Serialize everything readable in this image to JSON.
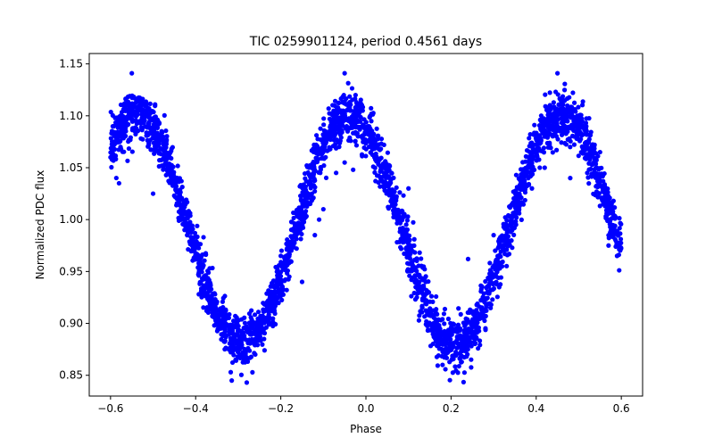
{
  "chart_data": {
    "type": "scatter",
    "title": "TIC 0259901124, period 0.4561 days",
    "xlabel": "Phase",
    "ylabel": "Normalized PDC flux",
    "xlim": [
      -0.65,
      0.65
    ],
    "ylim": [
      0.83,
      1.16
    ],
    "xticks": [
      -0.6,
      -0.4,
      -0.2,
      0.0,
      0.2,
      0.4,
      0.6
    ],
    "xtick_labels": [
      "−0.6",
      "−0.4",
      "−0.2",
      "0.0",
      "0.2",
      "0.4",
      "0.6"
    ],
    "yticks": [
      0.85,
      0.9,
      0.95,
      1.0,
      1.05,
      1.1,
      1.15
    ],
    "ytick_labels": [
      "0.85",
      "0.90",
      "0.95",
      "1.00",
      "1.05",
      "1.10",
      "1.15"
    ],
    "grid": false,
    "marker_color": "#0000ff",
    "x_range": [
      -0.6,
      0.6
    ],
    "period_days": 0.4561,
    "light_curve_model": {
      "description": "phase-folded sinusoid-like variation with two cycles over shown phase range",
      "mean": 0.99,
      "amplitude": 0.11,
      "maxima_phase": [
        -0.54,
        -0.04,
        0.46
      ],
      "minima_phase": [
        -0.29,
        0.21
      ],
      "scatter_sigma": 0.012
    },
    "outliers": [
      {
        "x": -0.55,
        "y": 1.141
      },
      {
        "x": -0.05,
        "y": 1.141
      },
      {
        "x": 0.45,
        "y": 1.141
      },
      {
        "x": -0.58,
        "y": 1.035
      },
      {
        "x": -0.5,
        "y": 1.025
      },
      {
        "x": -0.44,
        "y": 1.022
      },
      {
        "x": -0.42,
        "y": 0.985
      },
      {
        "x": -0.28,
        "y": 0.843
      },
      {
        "x": -0.2,
        "y": 0.965
      },
      {
        "x": -0.18,
        "y": 0.945
      },
      {
        "x": -0.15,
        "y": 0.94
      },
      {
        "x": -0.12,
        "y": 0.985
      },
      {
        "x": -0.11,
        "y": 1.0
      },
      {
        "x": -0.1,
        "y": 1.01
      },
      {
        "x": -0.07,
        "y": 1.045
      },
      {
        "x": -0.05,
        "y": 1.055
      },
      {
        "x": -0.03,
        "y": 1.048
      },
      {
        "x": 0.02,
        "y": 1.06
      },
      {
        "x": 0.06,
        "y": 1.045
      },
      {
        "x": 0.18,
        "y": 0.86
      },
      {
        "x": 0.24,
        "y": 0.962
      },
      {
        "x": 0.3,
        "y": 0.985
      },
      {
        "x": 0.32,
        "y": 0.955
      },
      {
        "x": 0.36,
        "y": 1.01
      },
      {
        "x": 0.39,
        "y": 1.03
      },
      {
        "x": 0.42,
        "y": 1.05
      },
      {
        "x": 0.48,
        "y": 1.04
      },
      {
        "x": 0.52,
        "y": 1.045
      },
      {
        "x": 0.55,
        "y": 1.065
      },
      {
        "x": 0.57,
        "y": 0.975
      },
      {
        "x": 0.59,
        "y": 0.965
      },
      {
        "x": -0.6,
        "y": 1.06
      },
      {
        "x": 0.1,
        "y": 1.03
      },
      {
        "x": -0.26,
        "y": 0.87
      }
    ]
  }
}
